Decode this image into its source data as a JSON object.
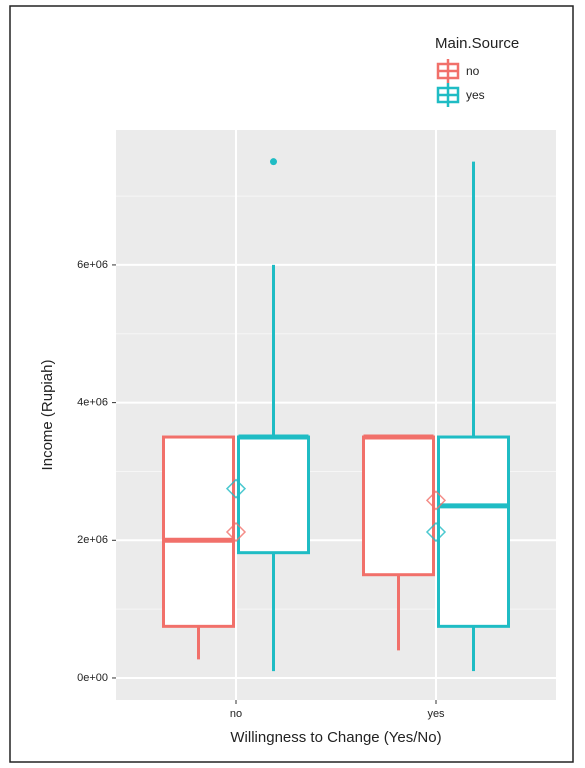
{
  "chart_data": {
    "type": "boxplot",
    "x_label": "Willingness to Change (Yes/No)",
    "y_label": "Income (Rupiah)",
    "legend_title": "Main.Source",
    "categories": [
      "no",
      "yes"
    ],
    "series": [
      {
        "name": "no",
        "color": "#f1706a",
        "min": [
          270000,
          400000
        ],
        "q1": [
          750000,
          1500000
        ],
        "median": [
          2000000,
          3500000
        ],
        "q3": [
          3500000,
          3500000
        ],
        "max": [
          3500000,
          3500000
        ],
        "mean": [
          2120000,
          2580000
        ],
        "outliers": [
          [],
          []
        ]
      },
      {
        "name": "yes",
        "color": "#1fbcc4",
        "min": [
          100000,
          100000
        ],
        "q1": [
          1820000,
          750000
        ],
        "median": [
          3500000,
          2500000
        ],
        "q3": [
          3500000,
          3500000
        ],
        "max": [
          6000000,
          7500000
        ],
        "mean": [
          2750000,
          2120000
        ],
        "outliers": [
          [
            7500000
          ],
          []
        ]
      }
    ],
    "ylim": [
      -320000,
      7960000
    ],
    "yticks": [
      {
        "value": 0,
        "label": "0e+00"
      },
      {
        "value": 2000000,
        "label": "2e+06"
      },
      {
        "value": 4000000,
        "label": "4e+06"
      },
      {
        "value": 6000000,
        "label": "6e+06"
      }
    ],
    "y_minor_ticks": [
      1000000,
      3000000,
      5000000,
      7000000
    ],
    "grid": true
  }
}
